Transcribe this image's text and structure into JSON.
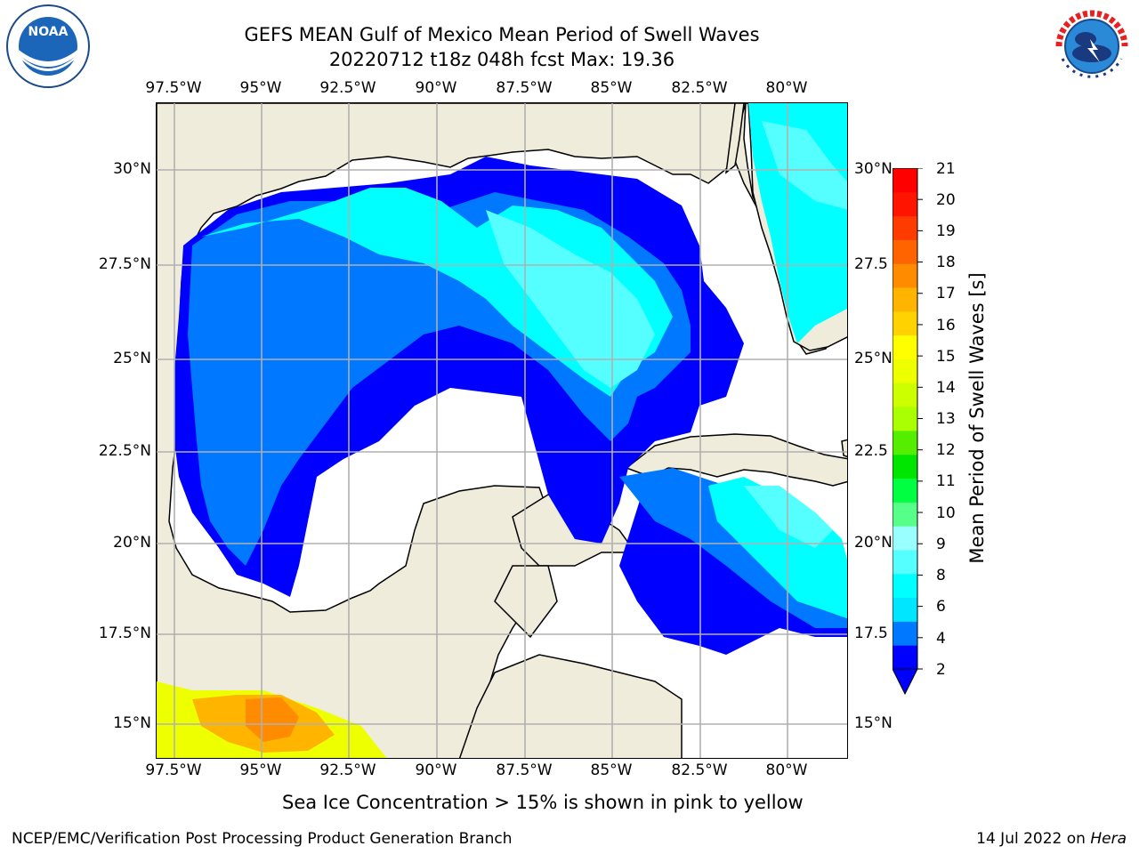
{
  "header": {
    "title": "GEFS MEAN Gulf of Mexico Mean Period of Swell Waves",
    "subtitle": "20220712 t18z 048h fcst   Max: 19.36"
  },
  "logos": {
    "noaa": {
      "text": "NOAA",
      "ring_text": "NATIONAL OCEANIC AND ATMOSPHERIC ADMINISTRATION · U.S. DEPARTMENT OF COMMERCE"
    },
    "nws": {
      "ring_text": "NATIONAL WEATHER SERVICE"
    }
  },
  "map": {
    "lon_labels": [
      "97.5°W",
      "95°W",
      "92.5°W",
      "90°W",
      "87.5°W",
      "85°W",
      "82.5°W",
      "80°W"
    ],
    "lat_labels_left": [
      "30°N",
      "27.5°N",
      "25°N",
      "22.5°N",
      "20°N",
      "17.5°N",
      "15°N"
    ],
    "lat_labels_right": [
      "30°N",
      "27.5",
      "25°N",
      "22.5",
      "20°N",
      "17.5",
      "15°N"
    ],
    "colors": {
      "land": "#efecdc",
      "ocean_nodata": "#ffffff",
      "grid": "#b0b0b0"
    }
  },
  "colorbar": {
    "label": "Mean Period of Swell Waves [s]",
    "ticks": [
      "21",
      "20",
      "19",
      "18",
      "17",
      "16",
      "15",
      "14",
      "13",
      "12",
      "11",
      "10",
      "9",
      "8",
      "6",
      "4",
      "2"
    ],
    "colors": [
      "#0000ff",
      "#0078ff",
      "#00e6ff",
      "#00ffff",
      "#55ffff",
      "#99ffff",
      "#55ff88",
      "#00ff40",
      "#00e600",
      "#55ee00",
      "#aaff00",
      "#ccff00",
      "#eeff00",
      "#ffff00",
      "#ffd200",
      "#ffb400",
      "#ff8c00",
      "#ff6400",
      "#ff3c00",
      "#ff1400",
      "#ff0000"
    ]
  },
  "notes": {
    "ice": "Sea Ice Concentration > 15% is shown in pink to yellow"
  },
  "footer": {
    "left": "NCEP/EMC/Verification Post Processing Product Generation Branch",
    "date": "14 Jul 2022 on ",
    "machine": "Hera"
  }
}
